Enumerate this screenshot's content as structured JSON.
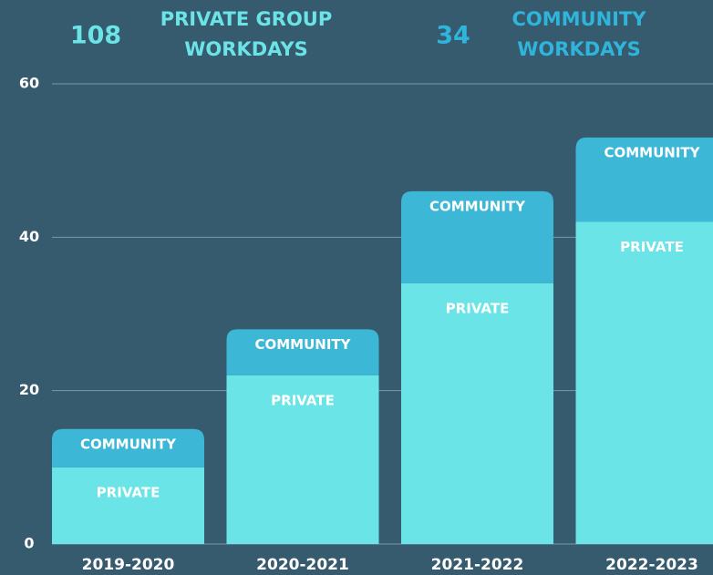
{
  "header": [
    {
      "value": 108,
      "label": [
        "PRIVATE GROUP",
        "WORKDAYS"
      ],
      "color": "#6ae4e6"
    },
    {
      "value": 34,
      "label": [
        "COMMUNITY",
        "WORKDAYS"
      ],
      "color": "#2fb5dc"
    }
  ],
  "chart_data": {
    "type": "stacked_bar",
    "categories": [
      "2019-2020",
      "2020-2021",
      "2021-2022",
      "2022-2023"
    ],
    "series": [
      {
        "name": "PRIVATE",
        "color": "#6ae4e6",
        "values": [
          10,
          22,
          34,
          42
        ]
      },
      {
        "name": "COMMUNITY",
        "color": "#3db7d6",
        "values": [
          5,
          6,
          12,
          11
        ]
      }
    ],
    "ylim": [
      0,
      60
    ],
    "yticks": [
      0,
      20,
      40,
      60
    ],
    "grid": true
  }
}
